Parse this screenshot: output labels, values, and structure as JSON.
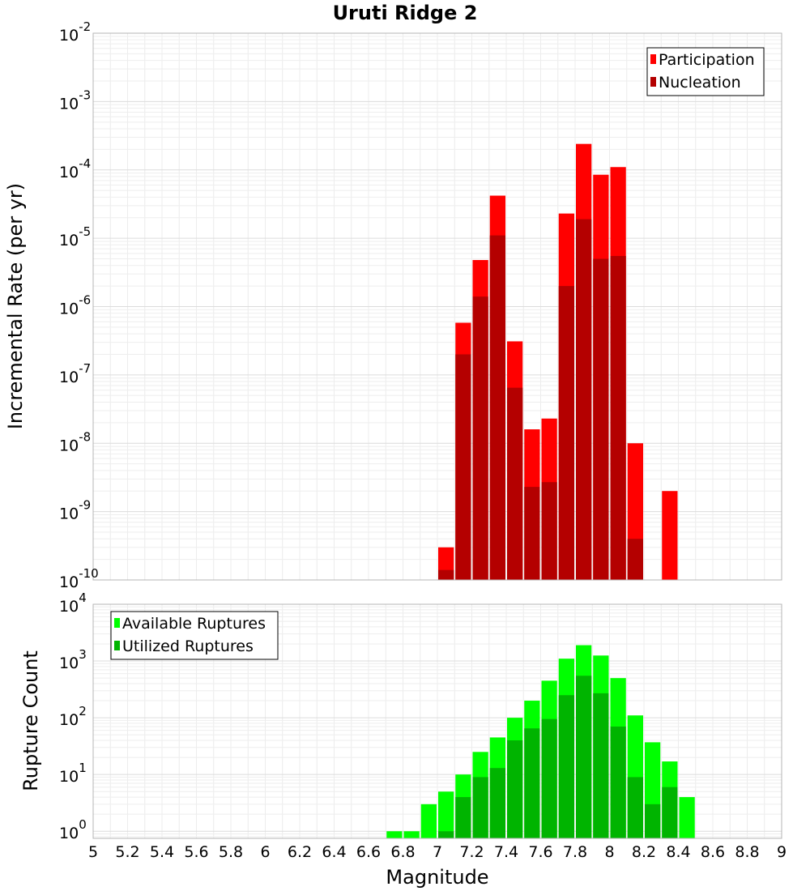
{
  "chart_data": [
    {
      "type": "bar",
      "title": "Uruti Ridge 2",
      "ylabel": "Incremental Rate (per yr)",
      "xlabel": "",
      "x_range": [
        5,
        9
      ],
      "y_scale": "log",
      "ylim": [
        1e-10,
        0.01
      ],
      "y_ticks": [
        {
          "base": "10",
          "exp": "-2"
        },
        {
          "base": "10",
          "exp": "-3"
        },
        {
          "base": "10",
          "exp": "-4"
        },
        {
          "base": "10",
          "exp": "-5"
        },
        {
          "base": "10",
          "exp": "-6"
        },
        {
          "base": "10",
          "exp": "-7"
        },
        {
          "base": "10",
          "exp": "-8"
        },
        {
          "base": "10",
          "exp": "-9"
        },
        {
          "base": "10",
          "exp": "-10"
        }
      ],
      "grid": true,
      "legend_position": "top-right",
      "legend": [
        "Participation",
        "Nucleation"
      ],
      "bar_width": 0.1,
      "series": [
        {
          "name": "Participation",
          "color": "#ff0000",
          "x": [
            7.05,
            7.15,
            7.25,
            7.35,
            7.45,
            7.55,
            7.65,
            7.75,
            7.85,
            7.95,
            8.05,
            8.15,
            8.35
          ],
          "values": [
            3e-10,
            5.8e-07,
            4.8e-06,
            4.2e-05,
            3.1e-07,
            1.6e-08,
            2.3e-08,
            2.3e-05,
            0.00024,
            8.5e-05,
            0.00011,
            1e-08,
            2e-09
          ]
        },
        {
          "name": "Nucleation",
          "color": "#b40000",
          "x": [
            7.05,
            7.15,
            7.25,
            7.35,
            7.45,
            7.55,
            7.65,
            7.75,
            7.85,
            7.95,
            8.05,
            8.15
          ],
          "values": [
            1.4e-10,
            2e-07,
            1.4e-06,
            1.1e-05,
            6.5e-08,
            2.3e-09,
            2.7e-09,
            2e-06,
            1.9e-05,
            5e-06,
            5.5e-06,
            4e-10
          ]
        }
      ]
    },
    {
      "type": "bar",
      "title": "",
      "ylabel": "Rupture Count",
      "xlabel": "Magnitude",
      "x_range": [
        5,
        9
      ],
      "x_ticks": [
        "5",
        "5.2",
        "5.4",
        "5.6",
        "5.8",
        "6",
        "6.2",
        "6.4",
        "6.6",
        "6.8",
        "7",
        "7.2",
        "7.4",
        "7.6",
        "7.8",
        "8",
        "8.2",
        "8.4",
        "8.6",
        "8.8",
        "9"
      ],
      "y_scale": "log",
      "ylim": [
        0.75,
        10000.0
      ],
      "y_ticks": [
        {
          "base": "10",
          "exp": "4"
        },
        {
          "base": "10",
          "exp": "3"
        },
        {
          "base": "10",
          "exp": "2"
        },
        {
          "base": "10",
          "exp": "1"
        },
        {
          "base": "10",
          "exp": "0"
        }
      ],
      "grid": true,
      "legend_position": "top-left",
      "legend": [
        "Available Ruptures",
        "Utilized Ruptures"
      ],
      "bar_width": 0.1,
      "series": [
        {
          "name": "Available Ruptures",
          "color": "#00ff00",
          "x": [
            6.75,
            6.85,
            6.95,
            7.05,
            7.15,
            7.25,
            7.35,
            7.45,
            7.55,
            7.65,
            7.75,
            7.85,
            7.95,
            8.05,
            8.15,
            8.25,
            8.35,
            8.45
          ],
          "values": [
            1,
            1,
            3,
            5,
            10,
            25,
            45,
            100,
            200,
            450,
            1100,
            1900,
            1250,
            500,
            110,
            37,
            17,
            4
          ]
        },
        {
          "name": "Utilized Ruptures",
          "color": "#00b400",
          "x": [
            7.05,
            7.15,
            7.25,
            7.35,
            7.45,
            7.55,
            7.65,
            7.75,
            7.85,
            7.95,
            8.05,
            8.15,
            8.25,
            8.35
          ],
          "values": [
            1,
            4,
            9,
            13,
            40,
            65,
            95,
            250,
            550,
            270,
            70,
            9,
            3,
            6
          ]
        }
      ]
    }
  ]
}
